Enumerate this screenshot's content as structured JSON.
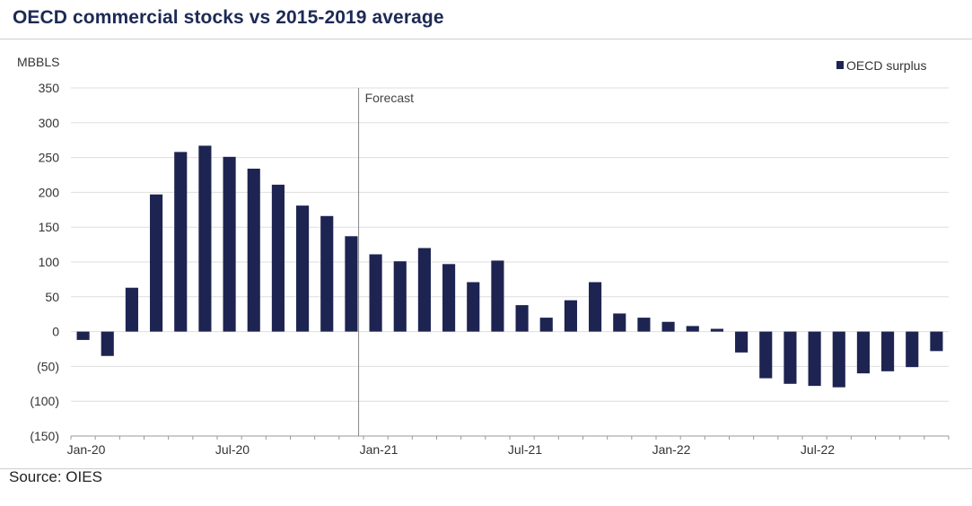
{
  "title": "OECD commercial stocks vs 2015-2019 average",
  "source": "Source: OIES",
  "chart_data": {
    "type": "bar",
    "ylabel": "MBBLS",
    "ylim": [
      -150,
      350
    ],
    "yticks": [
      350,
      300,
      250,
      200,
      150,
      100,
      50,
      0,
      -50,
      -100,
      -150
    ],
    "ytick_labels": [
      "350",
      "300",
      "250",
      "200",
      "150",
      "100",
      "50",
      "0",
      "(50)",
      "(100)",
      "(150)"
    ],
    "grid": true,
    "legend_position": "top-right",
    "series": [
      {
        "name": "OECD surplus",
        "color": "#1d2451",
        "values": [
          -12,
          -35,
          63,
          197,
          258,
          267,
          251,
          234,
          211,
          181,
          166,
          137,
          111,
          101,
          120,
          97,
          71,
          102,
          38,
          20,
          45,
          71,
          26,
          20,
          14,
          8,
          4,
          -30,
          -67,
          -75,
          -78,
          -80,
          -60,
          -57,
          -51,
          -28
        ]
      }
    ],
    "categories": [
      "Jan-20",
      "Feb-20",
      "Mar-20",
      "Apr-20",
      "May-20",
      "Jun-20",
      "Jul-20",
      "Aug-20",
      "Sep-20",
      "Oct-20",
      "Nov-20",
      "Dec-20",
      "Jan-21",
      "Feb-21",
      "Mar-21",
      "Apr-21",
      "May-21",
      "Jun-21",
      "Jul-21",
      "Aug-21",
      "Sep-21",
      "Oct-21",
      "Nov-21",
      "Dec-21",
      "Jan-22",
      "Feb-22",
      "Mar-22",
      "Apr-22",
      "May-22",
      "Jun-22",
      "Jul-22",
      "Aug-22",
      "Sep-22",
      "Oct-22",
      "Nov-22",
      "Dec-22"
    ],
    "xtick_labels": [
      {
        "index": 0,
        "label": "Jan-20"
      },
      {
        "index": 6,
        "label": "Jul-20"
      },
      {
        "index": 12,
        "label": "Jan-21"
      },
      {
        "index": 18,
        "label": "Jul-21"
      },
      {
        "index": 24,
        "label": "Jan-22"
      },
      {
        "index": 30,
        "label": "Jul-22"
      }
    ],
    "annotation": {
      "label": "Forecast",
      "at": "Jan-21"
    }
  }
}
